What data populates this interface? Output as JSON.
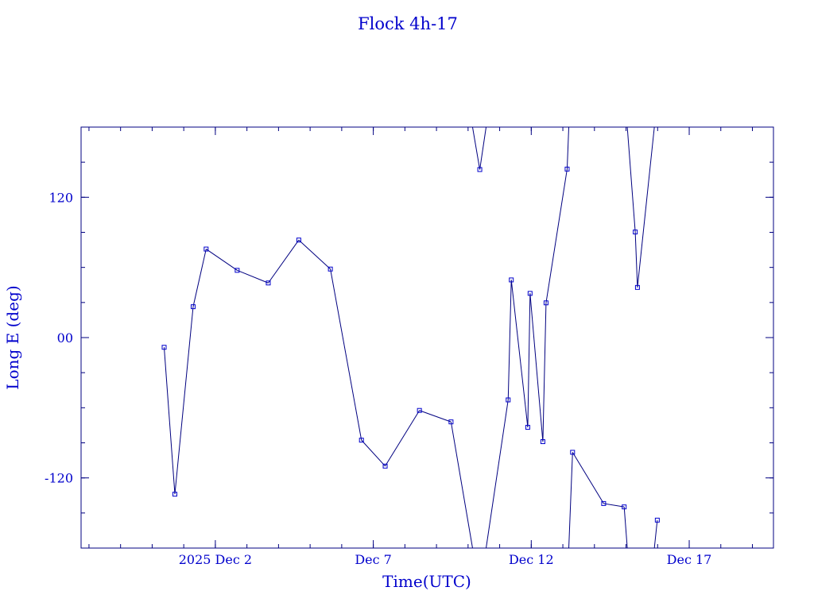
{
  "chart_data": {
    "type": "line",
    "title": "Flock 4h-17",
    "xlabel": "Time(UTC)",
    "ylabel": "Long E (deg)",
    "x_type": "date",
    "xlim": [
      "2025-11-27T18:00",
      "2025-12-19T16:00"
    ],
    "ylim": [
      -180,
      180
    ],
    "xticks": [
      {
        "label": "2025 Dec  2",
        "value": "2025-12-02T00:00"
      },
      {
        "label": "Dec  7",
        "value": "2025-12-07T00:00"
      },
      {
        "label": "Dec 12",
        "value": "2025-12-12T00:00"
      },
      {
        "label": "Dec 17",
        "value": "2025-12-17T00:00"
      }
    ],
    "yticks": [
      {
        "label": "-120",
        "value": -120
      },
      {
        "label": "00",
        "value": 0
      },
      {
        "label": "120",
        "value": 120
      }
    ],
    "wrap_longitude": true,
    "grid": false,
    "colors": {
      "line": "#000080",
      "marker": "#0000cc",
      "text": "#0000cc",
      "axes": "#000080"
    },
    "series": [
      {
        "points": [
          {
            "x": "2025-11-30T09:06",
            "y": -8.3
          },
          {
            "x": "2025-11-30T17:15",
            "y": -133.9
          },
          {
            "x": "2025-12-01T07:08",
            "y": 26.4
          },
          {
            "x": "2025-12-01T17:00",
            "y": 75.7
          },
          {
            "x": "2025-12-02T16:35",
            "y": 57.5
          },
          {
            "x": "2025-12-03T16:12",
            "y": 46.7
          },
          {
            "x": "2025-12-04T15:24",
            "y": 83.4
          },
          {
            "x": "2025-12-05T15:24",
            "y": 58.6
          },
          {
            "x": "2025-12-06T15:00",
            "y": -87.7
          },
          {
            "x": "2025-12-07T09:01",
            "y": -109.9
          },
          {
            "x": "2025-12-08T11:03",
            "y": -62.3
          },
          {
            "x": "2025-12-09T11:03",
            "y": -72.1
          },
          {
            "x": "2025-12-10T08:54",
            "y": 143.7
          },
          {
            "x": "2025-12-11T06:27",
            "y": -53.3
          },
          {
            "x": "2025-12-11T08:50",
            "y": 49.3
          },
          {
            "x": "2025-12-11T21:21",
            "y": -76.7
          },
          {
            "x": "2025-12-11T23:06",
            "y": 37.8
          },
          {
            "x": "2025-12-12T08:49",
            "y": -89.0
          },
          {
            "x": "2025-12-12T11:14",
            "y": 29.7
          },
          {
            "x": "2025-12-13T03:15",
            "y": 144.1
          },
          {
            "x": "2025-12-13T07:23",
            "y": -98.1
          },
          {
            "x": "2025-12-14T07:00",
            "y": -141.9
          },
          {
            "x": "2025-12-14T22:35",
            "y": -144.8
          },
          {
            "x": "2025-12-15T07:00",
            "y": 90.3
          },
          {
            "x": "2025-12-15T08:41",
            "y": 42.9
          },
          {
            "x": "2025-12-15T23:45",
            "y": -156.1
          }
        ]
      }
    ]
  }
}
